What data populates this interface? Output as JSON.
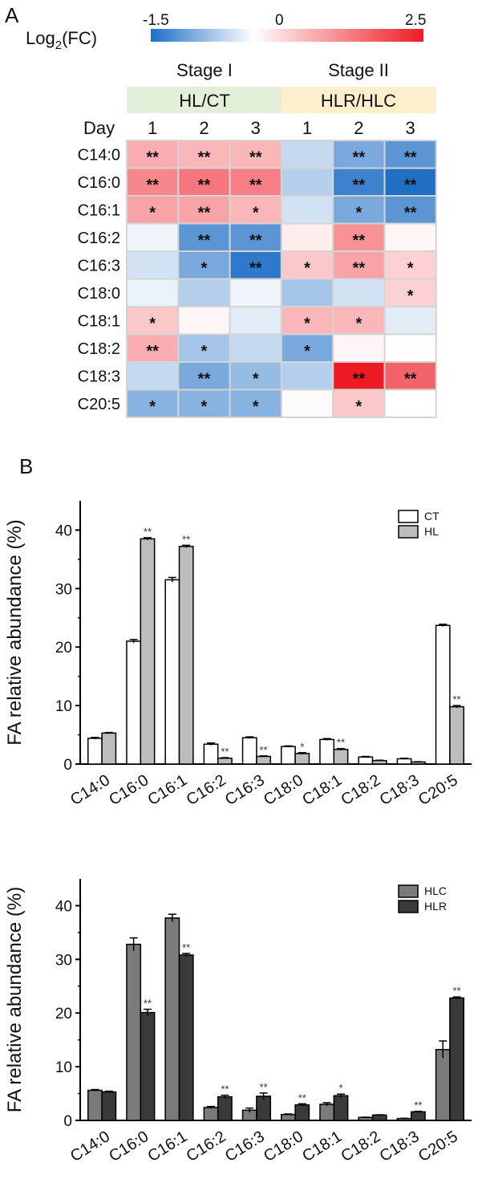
{
  "panel_labels": {
    "a": "A",
    "b": "B"
  },
  "colorbar": {
    "label_main": "Log",
    "label_sub": "2",
    "label_rest": "(FC)",
    "min_label": "-1.5",
    "mid_label": "0",
    "max_label": "2.5",
    "colors": {
      "low": "#1f6fc5",
      "mid": "#ffffff",
      "high": "#ee1b24"
    }
  },
  "heatmap": {
    "stage_labels": [
      "Stage I",
      "Stage II"
    ],
    "group_labels": [
      "HL/CT",
      "HLR/HLC"
    ],
    "group_colors": [
      "#e3efd9",
      "#fdefcd"
    ],
    "day_label": "Day",
    "days": [
      "1",
      "2",
      "3",
      "1",
      "2",
      "3"
    ]
  },
  "chart_data": [
    {
      "type": "heatmap",
      "title": "",
      "color_scale": {
        "min": -1.5,
        "mid": 0,
        "max": 2.5
      },
      "columns": [
        "HL/CT day 1",
        "HL/CT day 2",
        "HL/CT day 3",
        "HLR/HLC day 1",
        "HLR/HLC day 2",
        "HLR/HLC day 3"
      ],
      "rows": [
        "C14:0",
        "C16:0",
        "C16:1",
        "C16:2",
        "C16:3",
        "C18:0",
        "C18:1",
        "C18:2",
        "C18:3",
        "C20:5"
      ],
      "values": [
        [
          0.9,
          0.8,
          0.8,
          -0.4,
          -0.9,
          -1.1
        ],
        [
          1.3,
          1.5,
          1.4,
          -0.5,
          -1.3,
          -1.5
        ],
        [
          1.0,
          1.0,
          0.8,
          -0.3,
          -0.9,
          -1.1
        ],
        [
          -0.1,
          -1.1,
          -1.1,
          0.2,
          1.2,
          0.1
        ],
        [
          -0.3,
          -0.9,
          -1.4,
          0.6,
          1.0,
          0.5
        ],
        [
          -0.15,
          -0.5,
          -0.1,
          -0.6,
          -0.3,
          0.5
        ],
        [
          0.6,
          0.1,
          -0.2,
          0.8,
          0.8,
          -0.2
        ],
        [
          0.9,
          -0.6,
          -0.4,
          -0.9,
          0.1,
          0.02
        ],
        [
          -0.4,
          -0.9,
          -0.7,
          -0.5,
          2.5,
          1.7
        ],
        [
          -0.8,
          -0.8,
          -0.8,
          0.05,
          0.6,
          0.0
        ]
      ],
      "significance": [
        [
          "**",
          "**",
          "**",
          "",
          "**",
          "**"
        ],
        [
          "**",
          "**",
          "**",
          "",
          "**",
          "**"
        ],
        [
          "*",
          "**",
          "*",
          "",
          "*",
          "**"
        ],
        [
          "",
          "**",
          "**",
          "",
          "**",
          ""
        ],
        [
          "",
          "*",
          "**",
          "*",
          "**",
          "*"
        ],
        [
          "",
          "",
          "",
          "",
          "",
          "*"
        ],
        [
          "*",
          "",
          "",
          "*",
          "*",
          ""
        ],
        [
          "**",
          "*",
          "",
          "*",
          "",
          ""
        ],
        [
          "",
          "**",
          "*",
          "",
          "**",
          "**"
        ],
        [
          "*",
          "*",
          "*",
          "",
          "*",
          ""
        ]
      ]
    },
    {
      "type": "bar",
      "title": "",
      "ylabel": "FA relative abundance (%)",
      "xlabel": "",
      "ylim": [
        0,
        45
      ],
      "yticks": [
        0,
        10,
        20,
        30,
        40
      ],
      "categories": [
        "C14:0",
        "C16:0",
        "C16:1",
        "C16:2",
        "C16:3",
        "C18:0",
        "C18:1",
        "C18:2",
        "C18:3",
        "C20:5"
      ],
      "legend_position": "top-right",
      "series": [
        {
          "name": "CT",
          "color": "#ffffff",
          "values": [
            4.4,
            21.0,
            31.5,
            3.4,
            4.5,
            3.0,
            4.2,
            1.2,
            0.9,
            23.7
          ],
          "errors": [
            0.15,
            0.3,
            0.4,
            0.2,
            0.15,
            0.1,
            0.15,
            0.1,
            0.1,
            0.2
          ]
        },
        {
          "name": "HL",
          "color": "#bdbdbd",
          "values": [
            5.3,
            38.5,
            37.2,
            1.0,
            1.3,
            1.8,
            2.5,
            0.6,
            0.35,
            9.8
          ],
          "errors": [
            0.1,
            0.2,
            0.2,
            0.1,
            0.1,
            0.15,
            0.15,
            0.05,
            0.05,
            0.2
          ]
        }
      ],
      "significance": [
        "",
        "**",
        "**",
        "**",
        "**",
        "*",
        "**",
        "",
        "",
        "**"
      ]
    },
    {
      "type": "bar",
      "title": "",
      "ylabel": "FA relative abundance (%)",
      "xlabel": "",
      "ylim": [
        0,
        45
      ],
      "yticks": [
        0,
        10,
        20,
        30,
        40
      ],
      "categories": [
        "C14:0",
        "C16:0",
        "C16:1",
        "C16:2",
        "C16:3",
        "C18:0",
        "C18:1",
        "C18:2",
        "C18:3",
        "C20:5"
      ],
      "legend_position": "top-right",
      "series": [
        {
          "name": "HLC",
          "color": "#7b7b7b",
          "values": [
            5.6,
            32.8,
            37.7,
            2.4,
            1.9,
            1.1,
            3.0,
            0.55,
            0.35,
            13.2
          ],
          "errors": [
            0.15,
            1.2,
            0.7,
            0.2,
            0.4,
            0.1,
            0.3,
            0.05,
            0.05,
            1.6
          ]
        },
        {
          "name": "HLR",
          "color": "#3a3a3a",
          "values": [
            5.3,
            20.1,
            30.8,
            4.4,
            4.5,
            2.9,
            4.6,
            1.0,
            1.6,
            22.8
          ],
          "errors": [
            0.15,
            0.6,
            0.3,
            0.3,
            0.6,
            0.2,
            0.3,
            0.05,
            0.1,
            0.2
          ]
        }
      ],
      "significance": [
        "",
        "**",
        "**",
        "**",
        "**",
        "**",
        "*",
        "",
        "**",
        "**"
      ]
    }
  ]
}
